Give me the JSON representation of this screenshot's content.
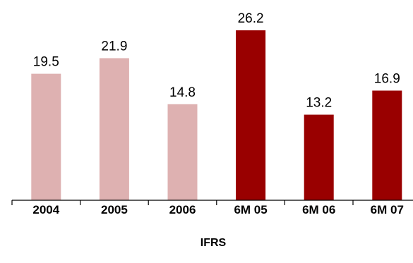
{
  "chart_data": {
    "type": "bar",
    "categories": [
      "2004",
      "2005",
      "2006",
      "6M 05",
      "6M 06",
      "6M 07"
    ],
    "values": [
      19.5,
      21.9,
      14.8,
      26.2,
      13.2,
      16.9
    ],
    "value_labels": [
      "19.5",
      "21.9",
      "14.8",
      "26.2",
      "13.2",
      "16.9"
    ],
    "bar_colors": [
      "#deb1b1",
      "#deb1b1",
      "#deb1b1",
      "#990000",
      "#990000",
      "#990000"
    ],
    "title": "",
    "xlabel": "IFRS",
    "ylabel": "",
    "ylim": [
      0,
      30
    ],
    "grid": false,
    "legend": "none"
  }
}
